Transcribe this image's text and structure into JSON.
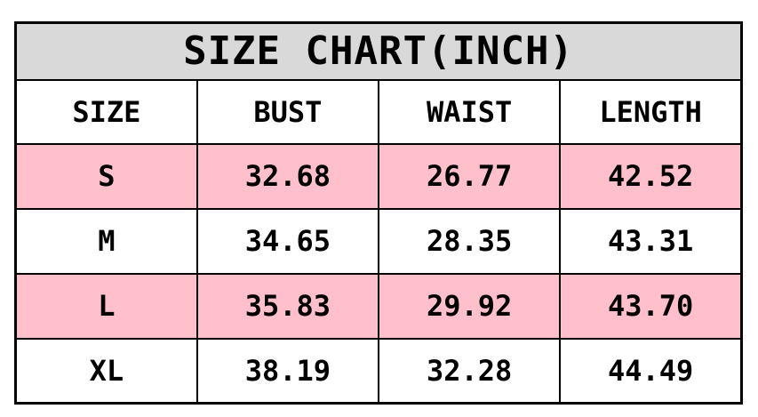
{
  "title": "SIZE CHART(INCH)",
  "colors": {
    "title_bg": "#d9d9d9",
    "row_alt_bg": "#ffc0cb",
    "row_bg": "#ffffff",
    "border": "#000000",
    "text": "#000000"
  },
  "table": {
    "headers": [
      "SIZE",
      "BUST",
      "WAIST",
      "LENGTH"
    ],
    "rows": [
      {
        "size": "S",
        "bust": "32.68",
        "waist": "26.77",
        "length": "42.52",
        "highlighted": true
      },
      {
        "size": "M",
        "bust": "34.65",
        "waist": "28.35",
        "length": "43.31",
        "highlighted": false
      },
      {
        "size": "L",
        "bust": "35.83",
        "waist": "29.92",
        "length": "43.70",
        "highlighted": true
      },
      {
        "size": "XL",
        "bust": "38.19",
        "waist": "32.28",
        "length": "44.49",
        "highlighted": false
      }
    ]
  },
  "chart_data": {
    "type": "table",
    "title": "SIZE CHART(INCH)",
    "units": "inches",
    "columns": [
      "SIZE",
      "BUST",
      "WAIST",
      "LENGTH"
    ],
    "rows": [
      [
        "S",
        32.68,
        26.77,
        42.52
      ],
      [
        "M",
        34.65,
        28.35,
        43.31
      ],
      [
        "L",
        35.83,
        29.92,
        43.7
      ],
      [
        "XL",
        38.19,
        32.28,
        44.49
      ]
    ],
    "layout": {
      "highlighted_row_color": "#ffc0cb",
      "title_background": "#d9d9d9",
      "grid": true
    }
  }
}
